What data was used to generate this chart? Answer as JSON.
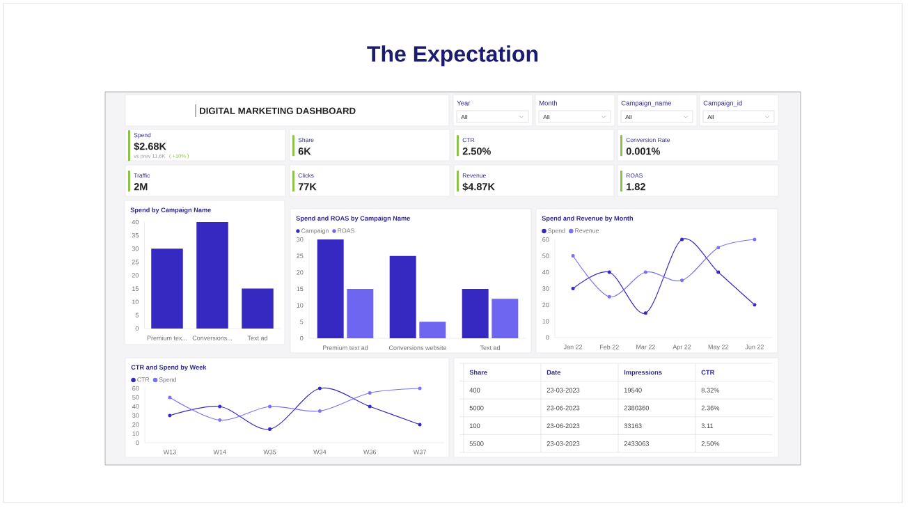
{
  "chart_data": [
    {
      "type": "other",
      "title": "The Expectation",
      "subtitle": "DIGITAL MARKETING DASHBOARD"
    },
    {
      "type": "other",
      "title": "Year",
      "annotations": [
        "All"
      ]
    },
    {
      "type": "other",
      "title": "Month",
      "annotations": [
        "All"
      ]
    },
    {
      "type": "other",
      "title": "Campaign_name",
      "annotations": [
        "All"
      ]
    },
    {
      "type": "other",
      "title": "Campaign_id",
      "annotations": [
        "All"
      ]
    },
    {
      "type": "other",
      "title": "Spend",
      "annotations": [
        "$2.68K",
        "vs prev 11.6K",
        "( +10% )"
      ]
    },
    {
      "type": "other",
      "title": "Share",
      "annotations": [
        "6K"
      ]
    },
    {
      "type": "other",
      "title": "CTR",
      "annotations": [
        "2.50%"
      ]
    },
    {
      "type": "other",
      "title": "Conversion Rate",
      "annotations": [
        "0.001%"
      ]
    },
    {
      "type": "other",
      "title": "Traffic",
      "annotations": [
        "2M"
      ]
    },
    {
      "type": "other",
      "title": "Clicks",
      "annotations": [
        "77K"
      ]
    },
    {
      "type": "other",
      "title": "Revenue",
      "annotations": [
        "$4.87K"
      ]
    },
    {
      "type": "other",
      "title": "ROAS",
      "annotations": [
        "1.82"
      ]
    },
    {
      "type": "bar",
      "title": "Spend by Campaign Name",
      "categories": [
        "Premium tex...",
        "Conversions...",
        "Text ad"
      ],
      "values": [
        30,
        40,
        15
      ],
      "color": "#3629c2",
      "ylim": [
        0,
        40
      ],
      "yticks": [
        0,
        5,
        10,
        15,
        20,
        25,
        30,
        35,
        40
      ]
    },
    {
      "type": "bar",
      "title": "Spend and ROAS by Campaign Name",
      "categories": [
        "Premium text ad",
        "Conversions website",
        "Text ad"
      ],
      "series": [
        {
          "name": "Campaign",
          "color": "#3629c2",
          "values": [
            30,
            25,
            15
          ]
        },
        {
          "name": "ROAS",
          "color": "#6e66f0",
          "values": [
            15,
            5,
            12
          ]
        }
      ],
      "ylim": [
        0,
        30
      ],
      "yticks": [
        0,
        5,
        10,
        15,
        20,
        25,
        30
      ],
      "legend": "top left"
    },
    {
      "type": "line",
      "title": "Spend and Revenue by Month",
      "categories": [
        "Jan 22",
        "Feb 22",
        "Mar 22",
        "Apr 22",
        "May 22",
        "Jun 22"
      ],
      "series": [
        {
          "name": "Spend",
          "color": "#3629c2",
          "values": [
            30,
            40,
            15,
            60,
            40,
            20
          ]
        },
        {
          "name": "Revenue",
          "color": "#7b73f3",
          "values": [
            50,
            25,
            40,
            35,
            55,
            60
          ]
        }
      ],
      "ylim": [
        0,
        60
      ],
      "yticks": [
        0,
        10,
        20,
        30,
        40,
        50,
        60
      ],
      "legend": "top left",
      "marker": "circle"
    },
    {
      "type": "line",
      "title": "CTR and Spend by Week",
      "categories": [
        "W13",
        "W14",
        "W35",
        "W34",
        "W36",
        "W37"
      ],
      "series": [
        {
          "name": "CTR",
          "color": "#3629c2",
          "values": [
            30,
            40,
            15,
            60,
            40,
            20
          ]
        },
        {
          "name": "Spend",
          "color": "#7b73f3",
          "values": [
            50,
            25,
            40,
            35,
            55,
            60
          ]
        }
      ],
      "ylim": [
        0,
        60
      ],
      "yticks": [
        0,
        10,
        20,
        30,
        40,
        50,
        60
      ],
      "legend": "top left",
      "marker": "circle"
    },
    {
      "type": "other",
      "annotations": [
        "Share",
        "Date",
        "Impressions",
        "CTR",
        "400",
        "23-03-2023",
        "19540",
        "8.32%",
        "5000",
        "23-06-2023",
        "2380360",
        "2.36%",
        "100",
        "23-06-2023",
        "33163",
        "3.11",
        "5500",
        "23-03-2023",
        "2433063",
        "2.50%"
      ]
    }
  ]
}
